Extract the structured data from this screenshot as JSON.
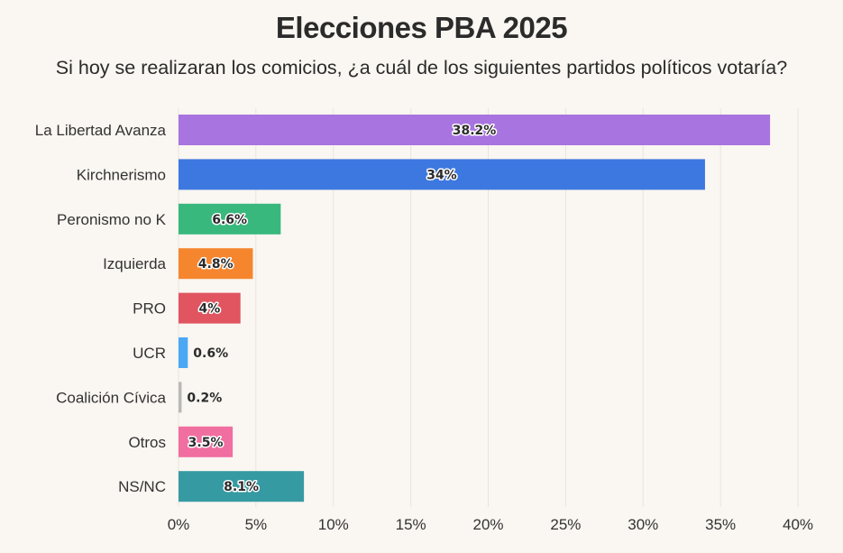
{
  "chart_data": {
    "type": "bar",
    "orientation": "horizontal",
    "title": "Elecciones PBA 2025",
    "subtitle": "Si hoy se realizaran los comicios, ¿a cuál de los siguientes partidos políticos votaría?",
    "xlabel": "",
    "ylabel": "",
    "categories": [
      "La Libertad Avanza",
      "Kirchnerismo",
      "Peronismo no K",
      "Izquierda",
      "PRO",
      "UCR",
      "Coalición Cívica",
      "Otros",
      "NS/NC"
    ],
    "values": [
      38.2,
      34,
      6.6,
      4.8,
      4,
      0.6,
      0.2,
      3.5,
      8.1
    ],
    "value_labels": [
      "38.2%",
      "34%",
      "6.6%",
      "4.8%",
      "4%",
      "0.6%",
      "0.2%",
      "3.5%",
      "8.1%"
    ],
    "colors": [
      "#a874e0",
      "#3d78e0",
      "#38b87c",
      "#f5862e",
      "#e05560",
      "#4aa8f5",
      "#b8b8b8",
      "#f06ea0",
      "#369aa3"
    ],
    "xlim": [
      0,
      40
    ],
    "xticks": [
      0,
      5,
      10,
      15,
      20,
      25,
      30,
      35,
      40
    ],
    "xtick_labels": [
      "0%",
      "5%",
      "10%",
      "15%",
      "20%",
      "25%",
      "30%",
      "35%",
      "40%"
    ],
    "grid": "vertical",
    "legend": "none"
  }
}
